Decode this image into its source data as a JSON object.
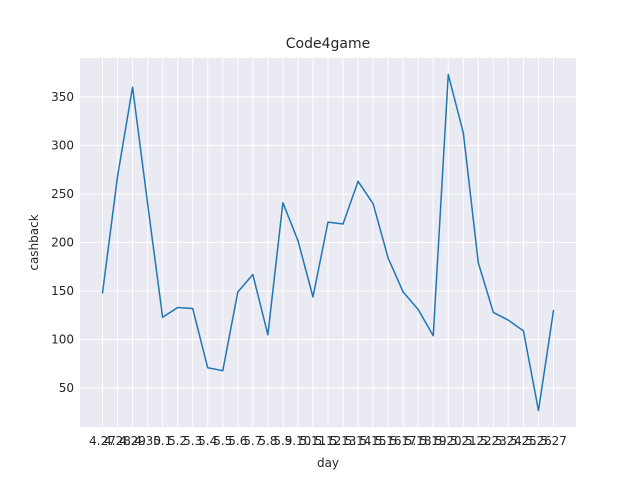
{
  "chart_data": {
    "type": "line",
    "title": "Code4game",
    "xlabel": "day",
    "ylabel": "cashback",
    "categories": [
      "4.27",
      "4.28",
      "4.29",
      "4.30",
      "5.1",
      "5.2",
      "5.3",
      "5.4",
      "5.5",
      "5.6",
      "5.7",
      "5.8",
      "5.9",
      "5.10",
      "5.11",
      "5.12",
      "5.13",
      "5.14",
      "5.15",
      "5.16",
      "5.17",
      "5.18",
      "5.19",
      "5.20",
      "5.21",
      "5.22",
      "5.23",
      "5.24",
      "5.25",
      "5.26",
      "5.27"
    ],
    "series": [
      {
        "values": [
          148,
          268,
          360,
          240,
          123,
          133,
          132,
          71,
          68,
          149,
          167,
          105,
          241,
          202,
          144,
          221,
          219,
          263,
          240,
          184,
          149,
          131,
          104,
          373,
          313,
          179,
          128,
          120,
          109,
          27,
          130
        ],
        "color": "#1f77b4"
      }
    ],
    "y_ticks": [
      50,
      100,
      150,
      200,
      250,
      300,
      350
    ],
    "ylim": [
      10,
      390
    ],
    "grid": true,
    "background": "#eaeaf2"
  }
}
